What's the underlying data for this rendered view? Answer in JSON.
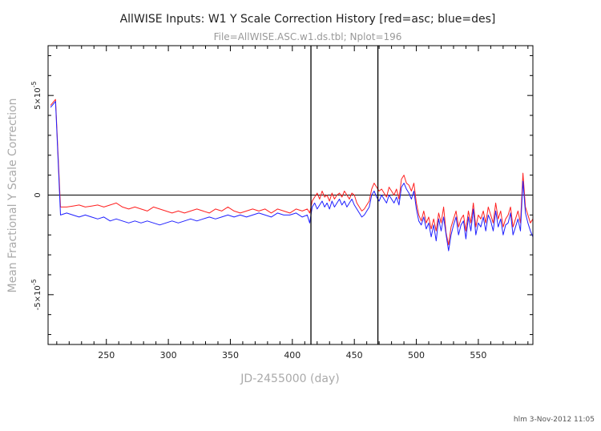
{
  "chart_data": {
    "type": "line",
    "title": "AllWISE Inputs: W1 Y Scale Correction History [red=asc; blue=des]",
    "subtitle": "File=AllWISE.ASC.w1.ds.tbl; Nplot=196",
    "xlabel": "JD-2455000 (day)",
    "ylabel": "Mean Fractional Y Scale Correction",
    "footer": "hlm  3-Nov-2012 11:05",
    "xlim": [
      203,
      594
    ],
    "ylim": [
      -7.5e-05,
      7.5e-05
    ],
    "x_ticks": [
      {
        "value": 250,
        "label": "250"
      },
      {
        "value": 300,
        "label": "300"
      },
      {
        "value": 350,
        "label": "350"
      },
      {
        "value": 400,
        "label": "400"
      },
      {
        "value": 450,
        "label": "450"
      },
      {
        "value": 500,
        "label": "500"
      },
      {
        "value": 550,
        "label": "550"
      }
    ],
    "y_ticks": [
      {
        "value": 5e-05,
        "mantissa": "5×10",
        "exponent": "-5"
      },
      {
        "value": 0,
        "mantissa": "0",
        "exponent": ""
      },
      {
        "value": -5e-05,
        "mantissa": "-5×10",
        "exponent": "-5"
      }
    ],
    "zero_line": true,
    "vlines": [
      415,
      469
    ],
    "series": [
      {
        "color": "#ff2020",
        "x": [
          205,
          209,
          213,
          218,
          223,
          228,
          233,
          238,
          243,
          248,
          253,
          258,
          263,
          268,
          273,
          278,
          283,
          288,
          293,
          298,
          303,
          308,
          313,
          318,
          323,
          328,
          333,
          338,
          343,
          348,
          353,
          358,
          363,
          368,
          373,
          378,
          383,
          388,
          393,
          398,
          403,
          408,
          412,
          414,
          416,
          418,
          420,
          422,
          424,
          426,
          428,
          430,
          432,
          434,
          436,
          438,
          440,
          442,
          444,
          446,
          448,
          450,
          452,
          454,
          456,
          458,
          460,
          462,
          464,
          466,
          468,
          470,
          472,
          474,
          476,
          478,
          480,
          482,
          484,
          486,
          488,
          490,
          492,
          494,
          496,
          498,
          500,
          502,
          504,
          506,
          508,
          510,
          512,
          514,
          516,
          518,
          520,
          522,
          524,
          526,
          528,
          530,
          532,
          534,
          536,
          538,
          540,
          542,
          544,
          546,
          548,
          550,
          552,
          554,
          556,
          558,
          560,
          562,
          564,
          566,
          568,
          570,
          572,
          574,
          576,
          578,
          580,
          582,
          584,
          586,
          588,
          590,
          592,
          594
        ],
        "y": [
          4.5e-05,
          4.8e-05,
          -6e-06,
          -6e-06,
          -5.5e-06,
          -5e-06,
          -6e-06,
          -5.5e-06,
          -5e-06,
          -6e-06,
          -5e-06,
          -4e-06,
          -6e-06,
          -7e-06,
          -6e-06,
          -7e-06,
          -8e-06,
          -6e-06,
          -7e-06,
          -8e-06,
          -9e-06,
          -8e-06,
          -9e-06,
          -8e-06,
          -7e-06,
          -8e-06,
          -9e-06,
          -7e-06,
          -8e-06,
          -6e-06,
          -8e-06,
          -9e-06,
          -8e-06,
          -7e-06,
          -8e-06,
          -7e-06,
          -9e-06,
          -7e-06,
          -8e-06,
          -9e-06,
          -7e-06,
          -8e-06,
          -7e-06,
          -9e-06,
          -3e-06,
          -1e-06,
          1e-06,
          -2e-06,
          2e-06,
          -1e-06,
          0,
          -3e-06,
          1e-06,
          -2e-06,
          0,
          1e-06,
          -1e-06,
          2e-06,
          0,
          -2e-06,
          1e-06,
          0,
          -4e-06,
          -6e-06,
          -8e-06,
          -7e-06,
          -5e-06,
          -3e-06,
          3e-06,
          6e-06,
          4e-06,
          2e-06,
          3e-06,
          1e-06,
          -1e-06,
          4e-06,
          2e-06,
          0,
          3e-06,
          -2e-06,
          8e-06,
          1e-05,
          6e-06,
          5e-06,
          2e-06,
          6e-06,
          -4e-06,
          -1e-05,
          -1.3e-05,
          -8e-06,
          -1.4e-05,
          -1.1e-05,
          -1.7e-05,
          -1.2e-05,
          -1.8e-05,
          -9e-06,
          -1.4e-05,
          -6e-06,
          -1.9e-05,
          -2.5e-05,
          -1.6e-05,
          -1.2e-05,
          -8e-06,
          -1.6e-05,
          -1.2e-05,
          -1e-05,
          -1.8e-05,
          -8e-06,
          -1.4e-05,
          -4e-06,
          -1.6e-05,
          -1e-05,
          -1.2e-05,
          -8e-06,
          -1.4e-05,
          -6e-06,
          -1e-05,
          -1.4e-05,
          -4e-06,
          -1.2e-05,
          -8e-06,
          -1.6e-05,
          -1.2e-05,
          -1e-05,
          -6e-06,
          -1.6e-05,
          -1.2e-05,
          -8e-06,
          -1.4e-05,
          1.1e-05,
          -6e-06,
          -1e-05,
          -1.4e-05,
          -1.2e-05
        ]
      },
      {
        "color": "#2020ff",
        "x": [
          205,
          209,
          213,
          218,
          223,
          228,
          233,
          238,
          243,
          248,
          253,
          258,
          263,
          268,
          273,
          278,
          283,
          288,
          293,
          298,
          303,
          308,
          313,
          318,
          323,
          328,
          333,
          338,
          343,
          348,
          353,
          358,
          363,
          368,
          373,
          378,
          383,
          388,
          393,
          398,
          403,
          408,
          412,
          414,
          416,
          418,
          420,
          422,
          424,
          426,
          428,
          430,
          432,
          434,
          436,
          438,
          440,
          442,
          444,
          446,
          448,
          450,
          452,
          454,
          456,
          458,
          460,
          462,
          464,
          466,
          468,
          470,
          472,
          474,
          476,
          478,
          480,
          482,
          484,
          486,
          488,
          490,
          492,
          494,
          496,
          498,
          500,
          502,
          504,
          506,
          508,
          510,
          512,
          514,
          516,
          518,
          520,
          522,
          524,
          526,
          528,
          530,
          532,
          534,
          536,
          538,
          540,
          542,
          544,
          546,
          548,
          550,
          552,
          554,
          556,
          558,
          560,
          562,
          564,
          566,
          568,
          570,
          572,
          574,
          576,
          578,
          580,
          582,
          584,
          586,
          588,
          590,
          592,
          594
        ],
        "y": [
          4.4e-05,
          4.7e-05,
          -1e-05,
          -9e-06,
          -1e-05,
          -1.1e-05,
          -1e-05,
          -1.1e-05,
          -1.2e-05,
          -1.1e-05,
          -1.3e-05,
          -1.2e-05,
          -1.3e-05,
          -1.4e-05,
          -1.3e-05,
          -1.4e-05,
          -1.3e-05,
          -1.4e-05,
          -1.5e-05,
          -1.4e-05,
          -1.3e-05,
          -1.4e-05,
          -1.3e-05,
          -1.2e-05,
          -1.3e-05,
          -1.2e-05,
          -1.1e-05,
          -1.2e-05,
          -1.1e-05,
          -1e-05,
          -1.1e-05,
          -1e-05,
          -1.1e-05,
          -1e-05,
          -9e-06,
          -1e-05,
          -1.1e-05,
          -9e-06,
          -1e-05,
          -1e-05,
          -9e-06,
          -1.1e-05,
          -1e-05,
          -1.4e-05,
          -6e-06,
          -4e-06,
          -7e-06,
          -5e-06,
          -3e-06,
          -6e-06,
          -4e-06,
          -7e-06,
          -3e-06,
          -6e-06,
          -4e-06,
          -2e-06,
          -5e-06,
          -3e-06,
          -6e-06,
          -4e-06,
          -2e-06,
          -5e-06,
          -7e-06,
          -9e-06,
          -1.1e-05,
          -1e-05,
          -8e-06,
          -6e-06,
          0,
          2e-06,
          -1e-06,
          -3e-06,
          0,
          -2e-06,
          -4e-06,
          0,
          -2e-06,
          -4e-06,
          -1e-06,
          -5e-06,
          4e-06,
          6e-06,
          3e-06,
          1e-06,
          -2e-06,
          2e-06,
          -7e-06,
          -1.3e-05,
          -1.5e-05,
          -1.1e-05,
          -1.7e-05,
          -1.4e-05,
          -2.1e-05,
          -1.5e-05,
          -2.3e-05,
          -1.2e-05,
          -1.8e-05,
          -1.1e-05,
          -2e-05,
          -2.8e-05,
          -2e-05,
          -1.5e-05,
          -1.1e-05,
          -2e-05,
          -1.5e-05,
          -1.3e-05,
          -2.2e-05,
          -1.1e-05,
          -1.8e-05,
          -7e-06,
          -2e-05,
          -1.4e-05,
          -1.6e-05,
          -1.1e-05,
          -1.8e-05,
          -1e-05,
          -1.3e-05,
          -1.8e-05,
          -8e-06,
          -1.6e-05,
          -1.2e-05,
          -2e-05,
          -1.5e-05,
          -1.4e-05,
          -9e-06,
          -2e-05,
          -1.6e-05,
          -1.2e-05,
          -1.8e-05,
          7e-06,
          -9e-06,
          -1.4e-05,
          -1.8e-05,
          -2.1e-05
        ]
      }
    ]
  }
}
